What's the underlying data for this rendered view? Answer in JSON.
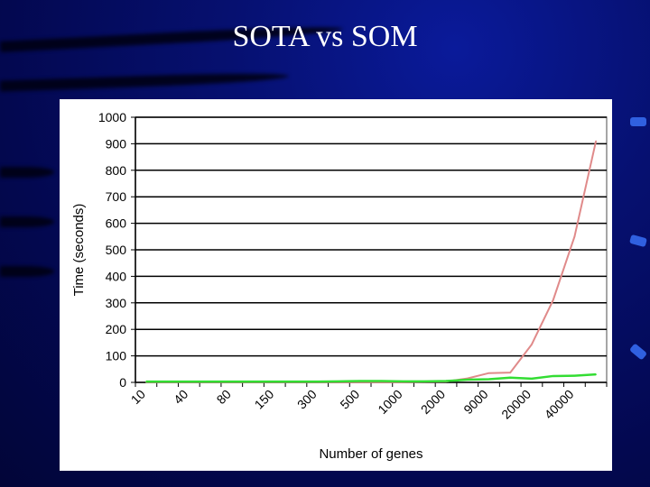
{
  "slide": {
    "title": "SOTA vs SOM"
  },
  "chart_data": {
    "type": "line",
    "title": "",
    "xlabel": "Number of genes",
    "ylabel": "Time (seconds)",
    "ylim": [
      0,
      1000
    ],
    "yticks": [
      "0",
      "100",
      "200",
      "300",
      "400",
      "500",
      "600",
      "700",
      "800",
      "900",
      "1000"
    ],
    "categories": [
      "10",
      "",
      "40",
      "",
      "80",
      "",
      "150",
      "",
      "300",
      "",
      "500",
      "",
      "1000",
      "",
      "2000",
      "",
      "9000",
      "",
      "20000",
      "",
      "40000",
      ""
    ],
    "grid": true,
    "legend": "none",
    "series": [
      {
        "color": "#e08a8a",
        "values": [
          1,
          1,
          1,
          1,
          1,
          1,
          1,
          1,
          1,
          1,
          1,
          1,
          1,
          2,
          3,
          15,
          35,
          37,
          143,
          310,
          550,
          910
        ]
      },
      {
        "color": "#33dd33",
        "values": [
          3,
          3,
          3,
          3,
          3,
          3,
          3,
          3,
          3,
          4,
          5,
          5,
          4,
          4,
          5,
          10,
          12,
          18,
          14,
          24,
          25,
          30
        ]
      }
    ]
  }
}
